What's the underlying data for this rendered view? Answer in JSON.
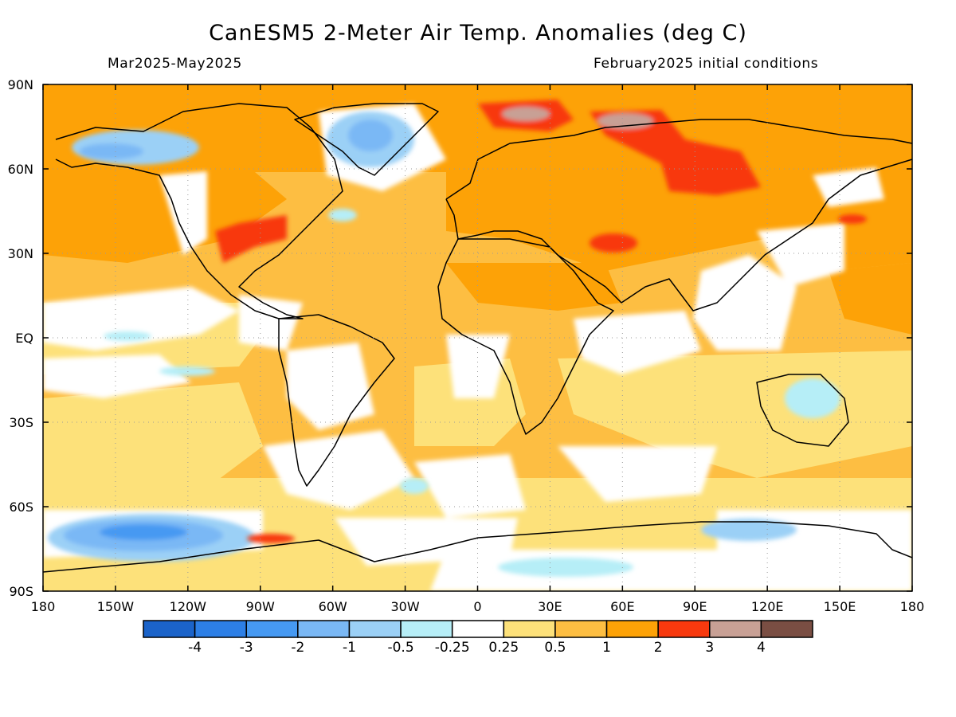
{
  "title": "CanESM5 2-Meter Air Temp. Anomalies (deg C)",
  "period": "Mar2025-May2025",
  "init": "February2025 initial conditions",
  "lat_labels": [
    "90N",
    "60N",
    "30N",
    "EQ",
    "30S",
    "60S",
    "90S"
  ],
  "lon_labels": [
    "180",
    "150W",
    "120W",
    "90W",
    "60W",
    "30W",
    "0",
    "30E",
    "60E",
    "90E",
    "120E",
    "150E",
    "180"
  ],
  "colorbar": {
    "colors": [
      "#1b63c9",
      "#2d7fe6",
      "#4699f2",
      "#7ab8f5",
      "#9bd0f6",
      "#b6eef7",
      "#ffffff",
      "#fde17a",
      "#fdbe42",
      "#fda207",
      "#f8390e",
      "#c8a095",
      "#7a4e43"
    ],
    "labels": [
      "-4",
      "-3",
      "-2",
      "-1",
      "-0.5",
      "-0.25",
      "0.25",
      "0.5",
      "1",
      "2",
      "3",
      "4"
    ]
  }
}
